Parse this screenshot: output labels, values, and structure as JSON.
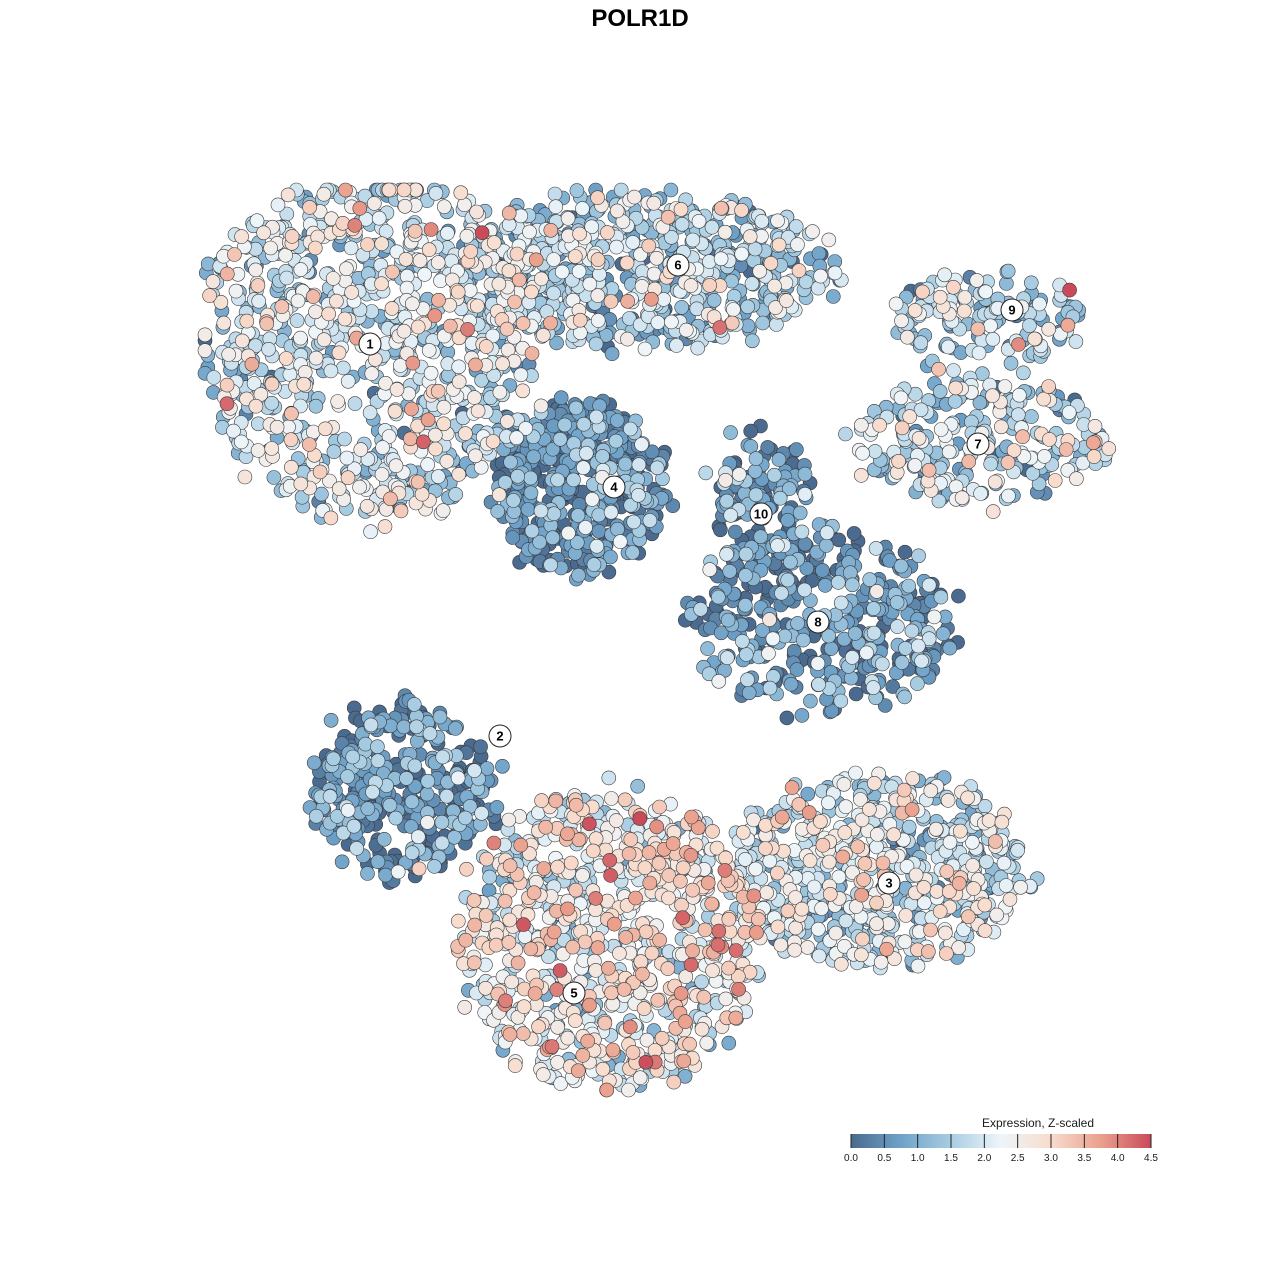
{
  "chart_data": {
    "type": "scatter",
    "title": "POLR1D",
    "color_scale": {
      "title": "Expression, Z-scaled",
      "min": 0.0,
      "max": 4.5,
      "ticks": [
        "0.0",
        "0.5",
        "1.0",
        "1.5",
        "2.0",
        "2.5",
        "3.0",
        "3.5",
        "4.0",
        "4.5"
      ],
      "colors": [
        "#4a6a8f",
        "#6fa2c9",
        "#a8cde3",
        "#eef5f9",
        "#f8dccd",
        "#eaa08d",
        "#c94a5a"
      ]
    },
    "clusters": [
      {
        "label": "1",
        "mean_expression": 1.9,
        "n": 900
      },
      {
        "label": "2",
        "mean_expression": 0.6,
        "n": 380
      },
      {
        "label": "3",
        "mean_expression": 1.9,
        "n": 650
      },
      {
        "label": "4",
        "mean_expression": 0.5,
        "n": 480
      },
      {
        "label": "5",
        "mean_expression": 2.4,
        "n": 850
      },
      {
        "label": "6",
        "mean_expression": 1.5,
        "n": 700
      },
      {
        "label": "7",
        "mean_expression": 1.7,
        "n": 260
      },
      {
        "label": "8",
        "mean_expression": 0.6,
        "n": 420
      },
      {
        "label": "9",
        "mean_expression": 1.7,
        "n": 150
      },
      {
        "label": "10",
        "mean_expression": 0.6,
        "n": 120
      }
    ]
  }
}
